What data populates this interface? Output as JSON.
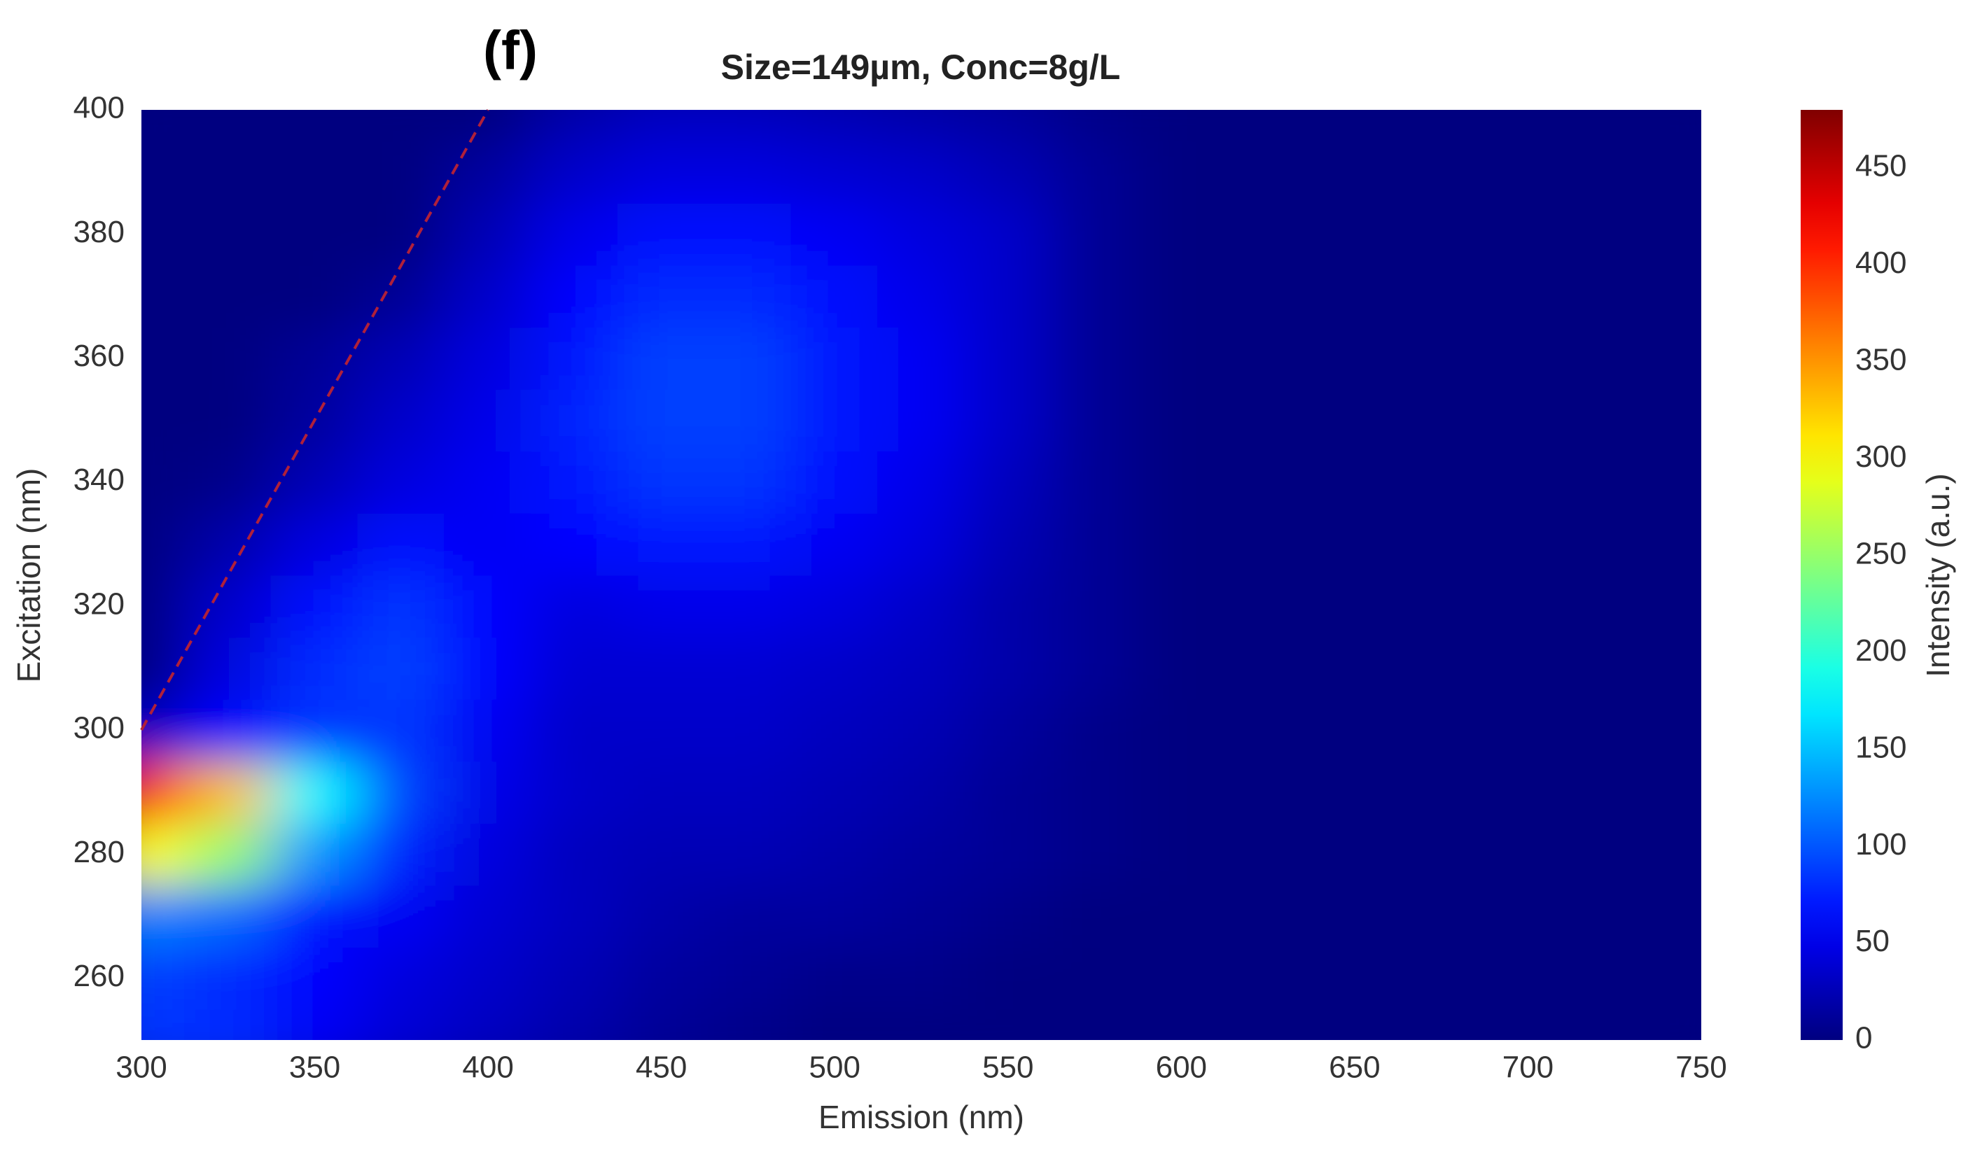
{
  "chart_data": {
    "type": "contour",
    "panel_label": "(f)",
    "title": "Size=149µm, Conc=8g/L",
    "xlabel": "Emission (nm)",
    "ylabel": "Excitation (nm)",
    "x": [
      300,
      325,
      350,
      375,
      400,
      425,
      450,
      475,
      500,
      525,
      550,
      575,
      600,
      625,
      650,
      675,
      700,
      725,
      750
    ],
    "y": [
      250,
      260,
      270,
      280,
      290,
      300,
      310,
      320,
      330,
      340,
      350,
      360,
      370,
      380,
      390,
      400
    ],
    "z": [
      [
        85,
        80,
        55,
        40,
        30,
        20,
        10,
        5,
        0,
        0,
        0,
        0,
        0,
        0,
        0,
        0,
        0,
        0,
        0
      ],
      [
        90,
        80,
        60,
        45,
        35,
        25,
        15,
        10,
        5,
        5,
        0,
        0,
        0,
        0,
        0,
        0,
        0,
        0,
        0
      ],
      [
        120,
        110,
        70,
        55,
        40,
        30,
        20,
        15,
        15,
        10,
        5,
        0,
        0,
        0,
        0,
        0,
        0,
        0,
        0
      ],
      [
        300,
        250,
        130,
        75,
        45,
        30,
        25,
        25,
        20,
        15,
        10,
        5,
        0,
        0,
        0,
        0,
        0,
        0,
        0
      ],
      [
        420,
        330,
        180,
        90,
        50,
        35,
        30,
        30,
        25,
        20,
        10,
        5,
        0,
        0,
        0,
        0,
        0,
        0,
        0
      ],
      [
        30,
        60,
        85,
        85,
        55,
        35,
        35,
        35,
        30,
        25,
        15,
        5,
        0,
        0,
        0,
        0,
        0,
        0,
        0
      ],
      [
        0,
        45,
        80,
        90,
        60,
        40,
        40,
        40,
        35,
        30,
        20,
        10,
        0,
        0,
        0,
        0,
        0,
        0,
        0
      ],
      [
        0,
        35,
        65,
        85,
        60,
        45,
        50,
        50,
        45,
        35,
        20,
        10,
        0,
        0,
        0,
        0,
        0,
        0,
        0
      ],
      [
        0,
        20,
        45,
        65,
        55,
        60,
        70,
        70,
        55,
        45,
        25,
        10,
        0,
        0,
        0,
        0,
        0,
        0,
        0
      ],
      [
        0,
        5,
        25,
        45,
        55,
        70,
        85,
        85,
        65,
        50,
        30,
        10,
        0,
        0,
        0,
        0,
        0,
        0,
        0
      ],
      [
        0,
        0,
        15,
        35,
        50,
        75,
        90,
        90,
        70,
        55,
        35,
        10,
        0,
        0,
        0,
        0,
        0,
        0,
        0
      ],
      [
        0,
        0,
        10,
        25,
        45,
        70,
        90,
        90,
        70,
        55,
        35,
        10,
        0,
        0,
        0,
        0,
        0,
        0,
        0
      ],
      [
        0,
        0,
        0,
        10,
        35,
        60,
        80,
        80,
        65,
        50,
        35,
        10,
        0,
        0,
        0,
        0,
        0,
        0,
        0
      ],
      [
        0,
        0,
        0,
        0,
        25,
        50,
        65,
        65,
        55,
        45,
        35,
        10,
        0,
        0,
        0,
        0,
        0,
        0,
        0
      ],
      [
        0,
        0,
        0,
        0,
        15,
        35,
        45,
        45,
        40,
        35,
        25,
        10,
        0,
        0,
        0,
        0,
        0,
        0,
        0
      ],
      [
        0,
        0,
        0,
        0,
        0,
        20,
        30,
        30,
        25,
        20,
        15,
        5,
        0,
        0,
        0,
        0,
        0,
        0,
        0
      ]
    ],
    "xlim": [
      300,
      750
    ],
    "ylim": [
      250,
      400
    ],
    "xticks": [
      300,
      350,
      400,
      450,
      500,
      550,
      600,
      650,
      700,
      750
    ],
    "yticks": [
      260,
      280,
      300,
      320,
      340,
      360,
      380,
      400
    ],
    "colormap": "jet",
    "diagonal_line_color": "#b0203a",
    "colorbar": {
      "label": "Intensity (a.u.)",
      "lim": [
        0,
        480
      ],
      "ticks": [
        0,
        50,
        100,
        150,
        200,
        250,
        300,
        350,
        400,
        450
      ]
    }
  }
}
